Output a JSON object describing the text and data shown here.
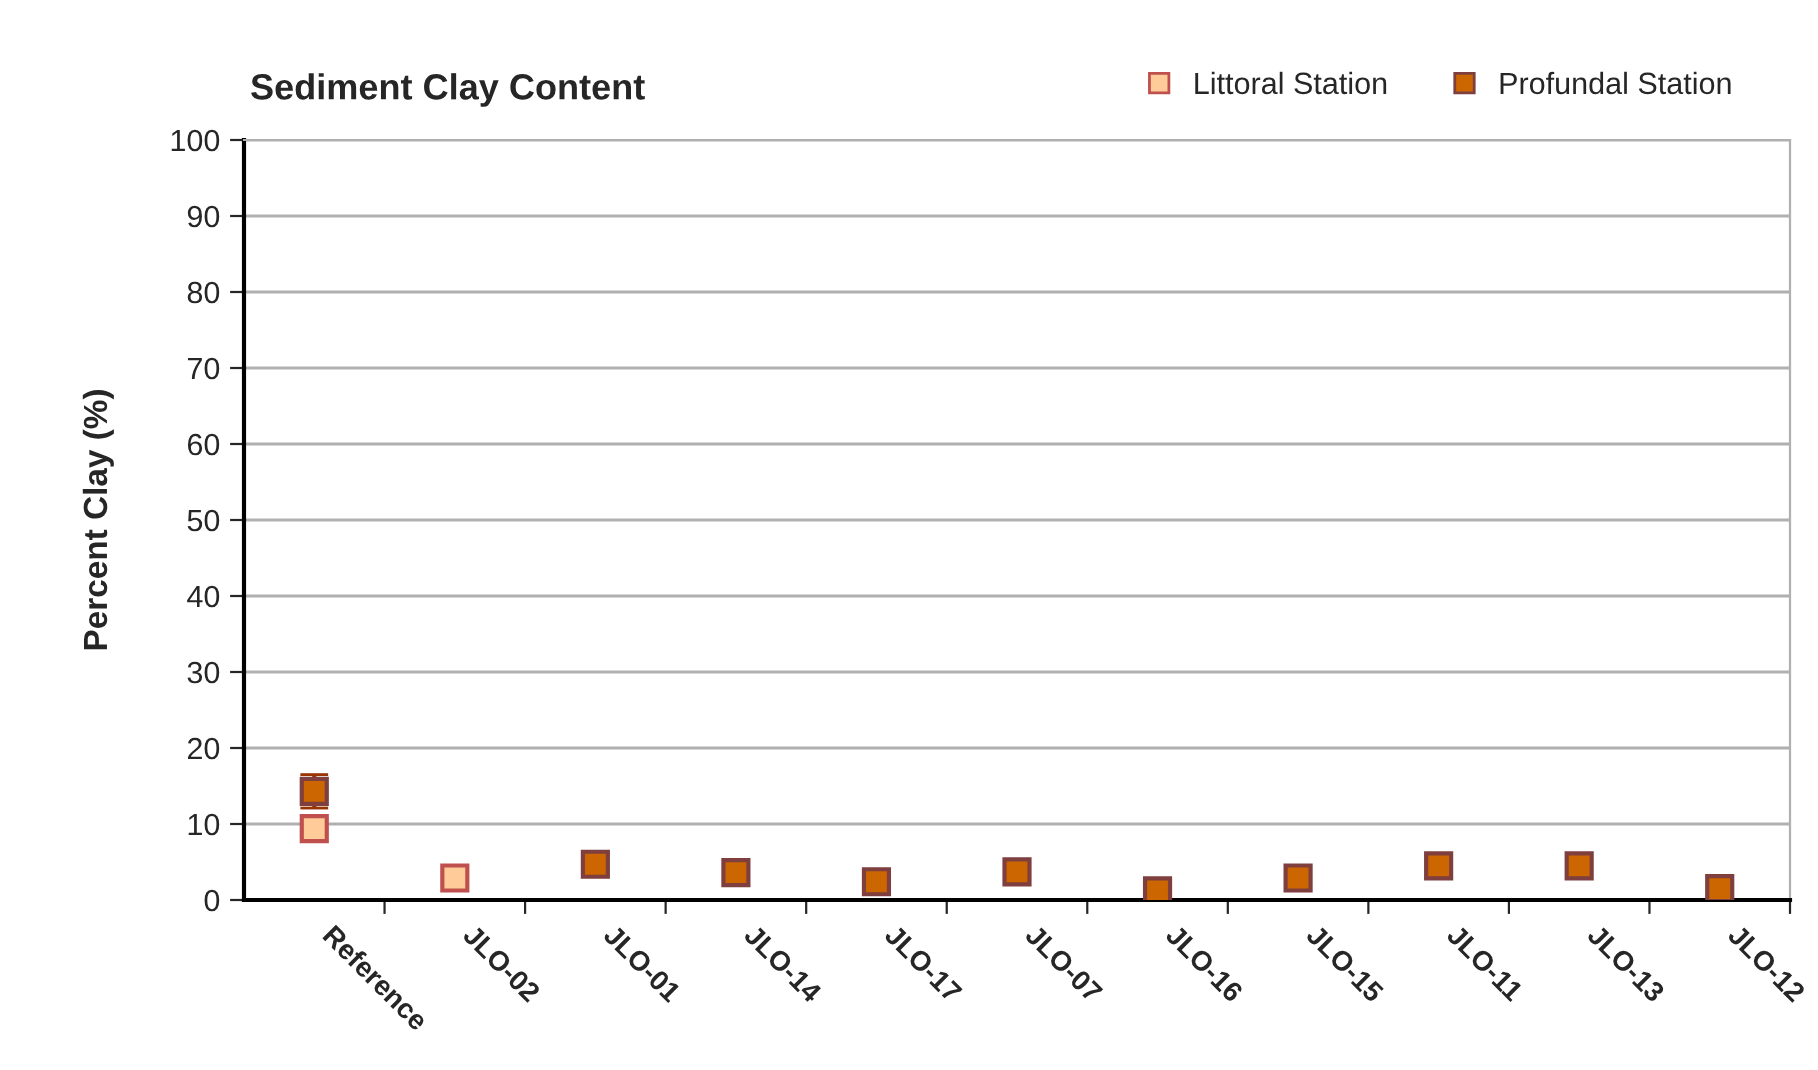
{
  "chart_data": {
    "type": "scatter",
    "title": "Sediment Clay Content",
    "ylabel": "Percent Clay (%)",
    "categories": [
      "Reference",
      "JLO-02",
      "JLO-01",
      "JLO-14",
      "JLO-17",
      "JLO-07",
      "JLO-16",
      "JLO-15",
      "JLO-11",
      "JLO-13",
      "JLO-12"
    ],
    "series": [
      {
        "name": "Littoral Station",
        "color": "#ffcc99",
        "values": [
          9.4,
          2.9,
          null,
          null,
          null,
          null,
          null,
          null,
          null,
          null,
          null
        ]
      },
      {
        "name": "Profundal Station",
        "color": "#cc6600",
        "values": [
          14.3,
          null,
          4.7,
          3.6,
          2.4,
          3.7,
          1.2,
          2.9,
          4.5,
          4.5,
          1.5
        ],
        "errors": [
          2.2,
          null,
          null,
          null,
          null,
          null,
          null,
          null,
          null,
          null,
          null
        ]
      }
    ],
    "ylim": [
      0,
      100
    ],
    "yticks": [
      0,
      10,
      20,
      30,
      40,
      50,
      60,
      70,
      80,
      90,
      100
    ],
    "grid": "y",
    "legend": "top right",
    "marker": "square"
  }
}
